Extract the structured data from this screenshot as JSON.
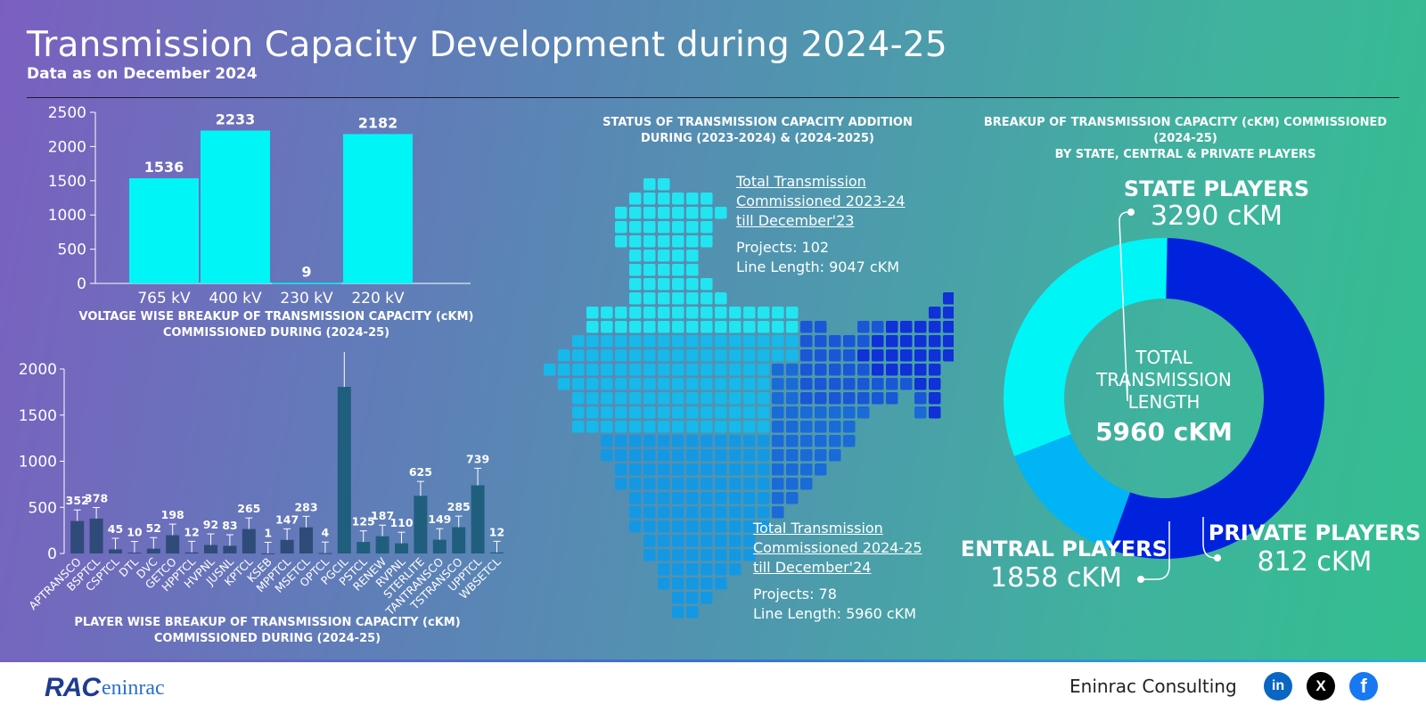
{
  "header": {
    "title": "Transmission Capacity Development during 2024-25",
    "subtitle": "Data as on December 2024"
  },
  "colors": {
    "cyan": "#00f5f7",
    "navy": "#2f4b7a",
    "teal": "#205e7e",
    "blue": "#0022dd",
    "sky": "#00b4f5"
  },
  "chart_data": [
    {
      "type": "bar",
      "title": "VOLTAGE WISE BREAKUP OF TRANSMISSION CAPACITY (cKM) COMMISSIONED DURING (2024-25)",
      "categories": [
        "765 kV",
        "400 kV",
        "230 kV",
        "220 kV"
      ],
      "values": [
        1536,
        2233,
        9,
        2182
      ],
      "ylim": [
        0,
        2500
      ],
      "yticks": [
        0,
        500,
        1000,
        1500,
        2000,
        2500
      ],
      "title_lines": [
        "VOLTAGE WISE BREAKUP OF TRANSMISSION CAPACITY (cKM)",
        "COMMISSIONED DURING (2024-25)"
      ]
    },
    {
      "type": "bar",
      "title": "PLAYER WISE BREAKUP OF TRANSMISSION CAPACITY (cKM) COMMISSIONED DURING (2024-25)",
      "title_lines": [
        "PLAYER WISE BREAKUP OF TRANSMISSION CAPACITY (cKM)",
        "COMMISSIONED DURING (2024-25)"
      ],
      "categories": [
        "APTRANSCO",
        "BSPTCL",
        "CSPTCL",
        "DTL",
        "DVC",
        "GETCO",
        "HPPTCL",
        "HVPNL",
        "JUSNL",
        "KPTCL",
        "KSEB",
        "MPPTCL",
        "MSETCL",
        "OPTCL",
        "PGCIL",
        "PSTCL",
        "RENEW",
        "RVPNL",
        "STERLITE",
        "TANTRANSCO",
        "TSTRANSCO",
        "UPPTCL",
        "WBSETCL"
      ],
      "values": [
        352,
        378,
        45,
        10,
        52,
        198,
        12,
        92,
        83,
        265,
        1,
        147,
        283,
        4,
        1806,
        125,
        187,
        110,
        625,
        149,
        285,
        739,
        12
      ],
      "ylim": [
        0,
        2000
      ],
      "yticks": [
        0,
        500,
        1000,
        1500,
        2000
      ],
      "error_bars": true
    },
    {
      "type": "pie",
      "title": "BREAKUP OF TRANSMISSION CAPACITY (cKM) COMMISSIONED (2024-25) BY STATE, CENTRAL & PRIVATE PLAYERS",
      "title_lines": [
        "BREAKUP OF TRANSMISSION CAPACITY (cKM) COMMISSIONED (2024-25)",
        "BY STATE, CENTRAL & PRIVATE PLAYERS"
      ],
      "series": [
        {
          "name": "STATE PLAYERS",
          "value": 3290,
          "label": "3290 cKM",
          "color": "#0022dd"
        },
        {
          "name": "PRIVATE PLAYERS",
          "value": 812,
          "label": "812 cKM",
          "color": "#00b4f5"
        },
        {
          "name": "CENTRAL PLAYERS",
          "value": 1858,
          "label": "1858 cKM",
          "color": "#00f5f7"
        }
      ],
      "center": {
        "line1": "TOTAL",
        "line2": "TRANSMISSION",
        "line3": "LENGTH",
        "total": "5960 cKM"
      }
    }
  ],
  "map_panel": {
    "title_lines": [
      "STATUS OF TRANSMISSION CAPACITY ADDITION",
      "DURING (2023-2024) & (2024-2025)"
    ],
    "block_2023": {
      "heading_lines": [
        "Total Transmission",
        "Commissioned 2023-24",
        "till December'23 "
      ],
      "projects": "Projects: 102",
      "length": "Line Length: 9047 cKM"
    },
    "block_2024": {
      "heading_lines": [
        "Total Transmission",
        "Commissioned 2024-25",
        "till December'24 "
      ],
      "projects": "Projects: 78",
      "length": "Line Length: 5960 cKM"
    }
  },
  "footer": {
    "logo_text": "RAC",
    "logo_script": "eninrac",
    "company": "Eninrac Consulting",
    "social": [
      {
        "icon": "linkedin-icon",
        "glyph": "in",
        "color": "#0a66c2"
      },
      {
        "icon": "x-icon",
        "glyph": "X",
        "color": "#000000"
      },
      {
        "icon": "facebook-icon",
        "glyph": "f",
        "color": "#1877f2"
      }
    ]
  }
}
